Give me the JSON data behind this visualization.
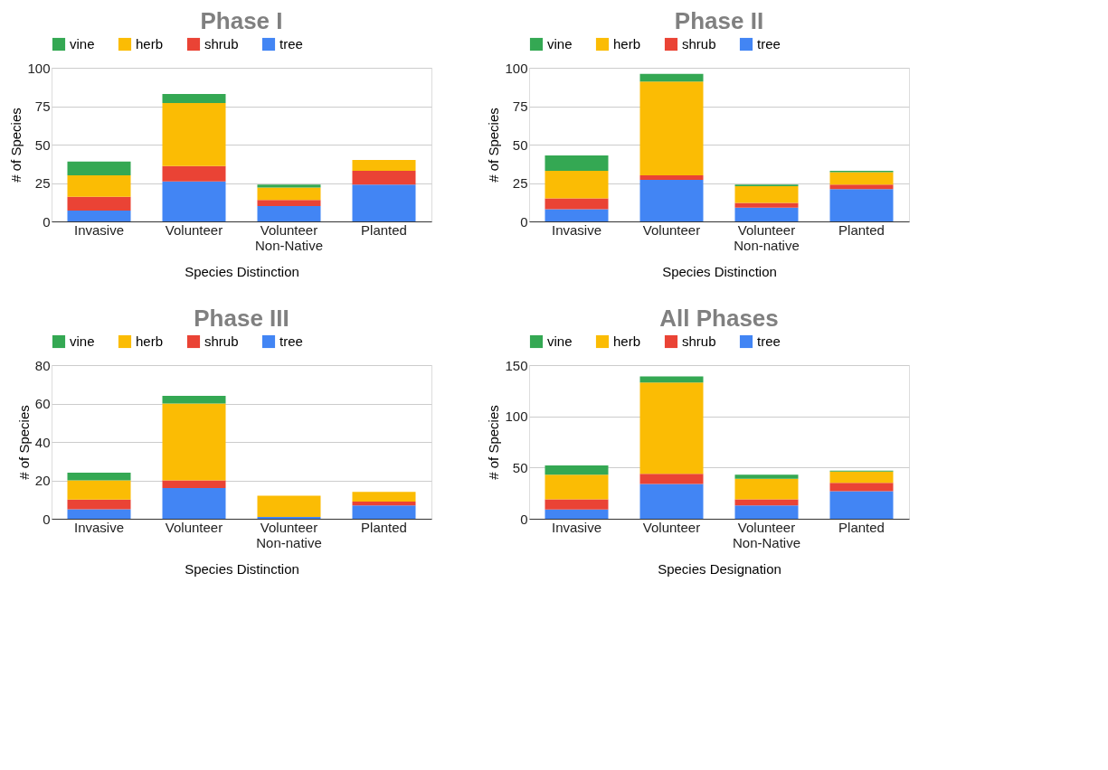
{
  "chart_data": [
    {
      "type": "bar",
      "title": "Phase I",
      "xlabel": "Species Distinction",
      "ylabel": "# of Species",
      "categories": [
        "Invasive",
        "Volunteer",
        "Volunteer Non-Native",
        "Planted"
      ],
      "stacked": true,
      "ylim": [
        0,
        100
      ],
      "yticks": [
        0,
        25,
        50,
        75,
        100
      ],
      "grid": "y",
      "legend": "top",
      "series": [
        {
          "name": "tree",
          "color": "#4285f4",
          "values": [
            7,
            26,
            10,
            24
          ]
        },
        {
          "name": "shrub",
          "color": "#ea4335",
          "values": [
            9,
            10,
            4,
            9
          ]
        },
        {
          "name": "herb",
          "color": "#fbbc04",
          "values": [
            14,
            41,
            8,
            7
          ]
        },
        {
          "name": "vine",
          "color": "#34a853",
          "values": [
            9,
            6,
            2,
            0
          ]
        }
      ]
    },
    {
      "type": "bar",
      "title": "Phase II",
      "xlabel": "Species Distinction",
      "ylabel": "# of Species",
      "categories": [
        "Invasive",
        "Volunteer",
        "Volunteer Non-native",
        "Planted"
      ],
      "stacked": true,
      "ylim": [
        0,
        100
      ],
      "yticks": [
        0,
        25,
        50,
        75,
        100
      ],
      "grid": "y",
      "legend": "top",
      "series": [
        {
          "name": "tree",
          "color": "#4285f4",
          "values": [
            8,
            27,
            9,
            21
          ]
        },
        {
          "name": "shrub",
          "color": "#ea4335",
          "values": [
            7,
            3,
            3,
            3
          ]
        },
        {
          "name": "herb",
          "color": "#fbbc04",
          "values": [
            18,
            61,
            11,
            8
          ]
        },
        {
          "name": "vine",
          "color": "#34a853",
          "values": [
            10,
            5,
            1,
            1
          ]
        }
      ]
    },
    {
      "type": "bar",
      "title": "Phase III",
      "xlabel": "Species Distinction",
      "ylabel": "# of Species",
      "categories": [
        "Invasive",
        "Volunteer",
        "Volunteer Non-native",
        "Planted"
      ],
      "stacked": true,
      "ylim": [
        0,
        80
      ],
      "yticks": [
        0,
        20,
        40,
        60,
        80
      ],
      "grid": "y",
      "legend": "top",
      "series": [
        {
          "name": "tree",
          "color": "#4285f4",
          "values": [
            5,
            16,
            1,
            7
          ]
        },
        {
          "name": "shrub",
          "color": "#ea4335",
          "values": [
            5,
            4,
            0,
            2
          ]
        },
        {
          "name": "herb",
          "color": "#fbbc04",
          "values": [
            10,
            40,
            11,
            5
          ]
        },
        {
          "name": "vine",
          "color": "#34a853",
          "values": [
            4,
            4,
            0,
            0
          ]
        }
      ]
    },
    {
      "type": "bar",
      "title": "All Phases",
      "xlabel": "Species Designation",
      "ylabel": "# of Species",
      "categories": [
        "Invasive",
        "Volunteer",
        "Volunteer Non-Native",
        "Planted"
      ],
      "stacked": true,
      "ylim": [
        0,
        150
      ],
      "yticks": [
        0,
        50,
        100,
        150
      ],
      "grid": "y",
      "legend": "top",
      "series": [
        {
          "name": "tree",
          "color": "#4285f4",
          "values": [
            9,
            34,
            13,
            27
          ]
        },
        {
          "name": "shrub",
          "color": "#ea4335",
          "values": [
            10,
            10,
            6,
            8
          ]
        },
        {
          "name": "herb",
          "color": "#fbbc04",
          "values": [
            24,
            89,
            20,
            11
          ]
        },
        {
          "name": "vine",
          "color": "#34a853",
          "values": [
            9,
            6,
            4,
            1
          ]
        }
      ]
    }
  ]
}
